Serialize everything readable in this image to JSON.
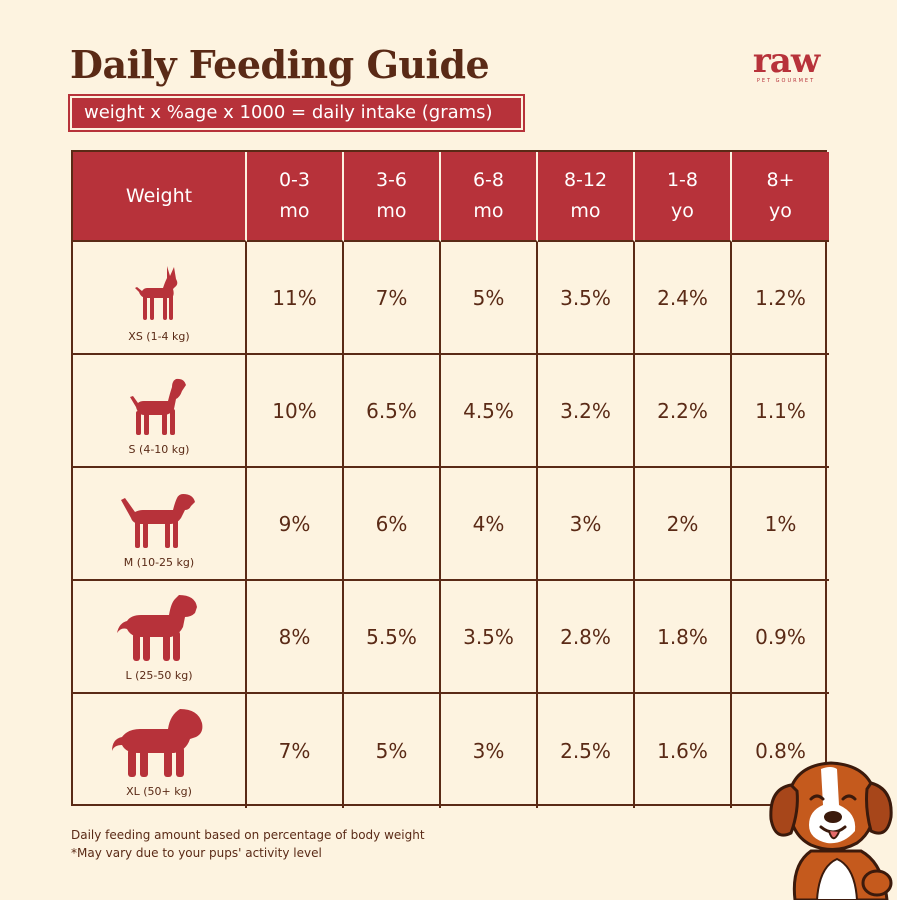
{
  "title": "Daily Feeding Guide",
  "formula": "weight x %age x 1000 = daily intake (grams)",
  "logo": {
    "word": "raw",
    "sub": "PET GOURMET"
  },
  "table": {
    "corner": "Weight",
    "headers": [
      {
        "top": "0-3",
        "bottom": "mo"
      },
      {
        "top": "3-6",
        "bottom": "mo"
      },
      {
        "top": "6-8",
        "bottom": "mo"
      },
      {
        "top": "8-12",
        "bottom": "mo"
      },
      {
        "top": "1-8",
        "bottom": "yo"
      },
      {
        "top": "8+",
        "bottom": "yo"
      }
    ],
    "rows": [
      {
        "label": "XS (1-4 kg)",
        "icon": "chihuahua-icon",
        "values": [
          "11%",
          "7%",
          "5%",
          "3.5%",
          "2.4%",
          "1.2%"
        ]
      },
      {
        "label": "S (4-10 kg)",
        "icon": "terrier-icon",
        "values": [
          "10%",
          "6.5%",
          "4.5%",
          "3.2%",
          "2.2%",
          "1.1%"
        ]
      },
      {
        "label": "M (10-25 kg)",
        "icon": "pointer-dog-icon",
        "values": [
          "9%",
          "6%",
          "4%",
          "3%",
          "2%",
          "1%"
        ]
      },
      {
        "label": "L (25-50 kg)",
        "icon": "retriever-icon",
        "values": [
          "8%",
          "5.5%",
          "3.5%",
          "2.8%",
          "1.8%",
          "0.9%"
        ]
      },
      {
        "label": "XL (50+ kg)",
        "icon": "saint-bernard-icon",
        "values": [
          "7%",
          "5%",
          "3%",
          "2.5%",
          "1.6%",
          "0.8%"
        ]
      }
    ]
  },
  "footer": {
    "line1": "Daily feeding amount based on percentage of body weight",
    "line2": "*May vary due to your pups' activity level"
  },
  "colors": {
    "brand_red": "#b7323a",
    "brown": "#5a2a16",
    "background": "#fdf3e0"
  }
}
